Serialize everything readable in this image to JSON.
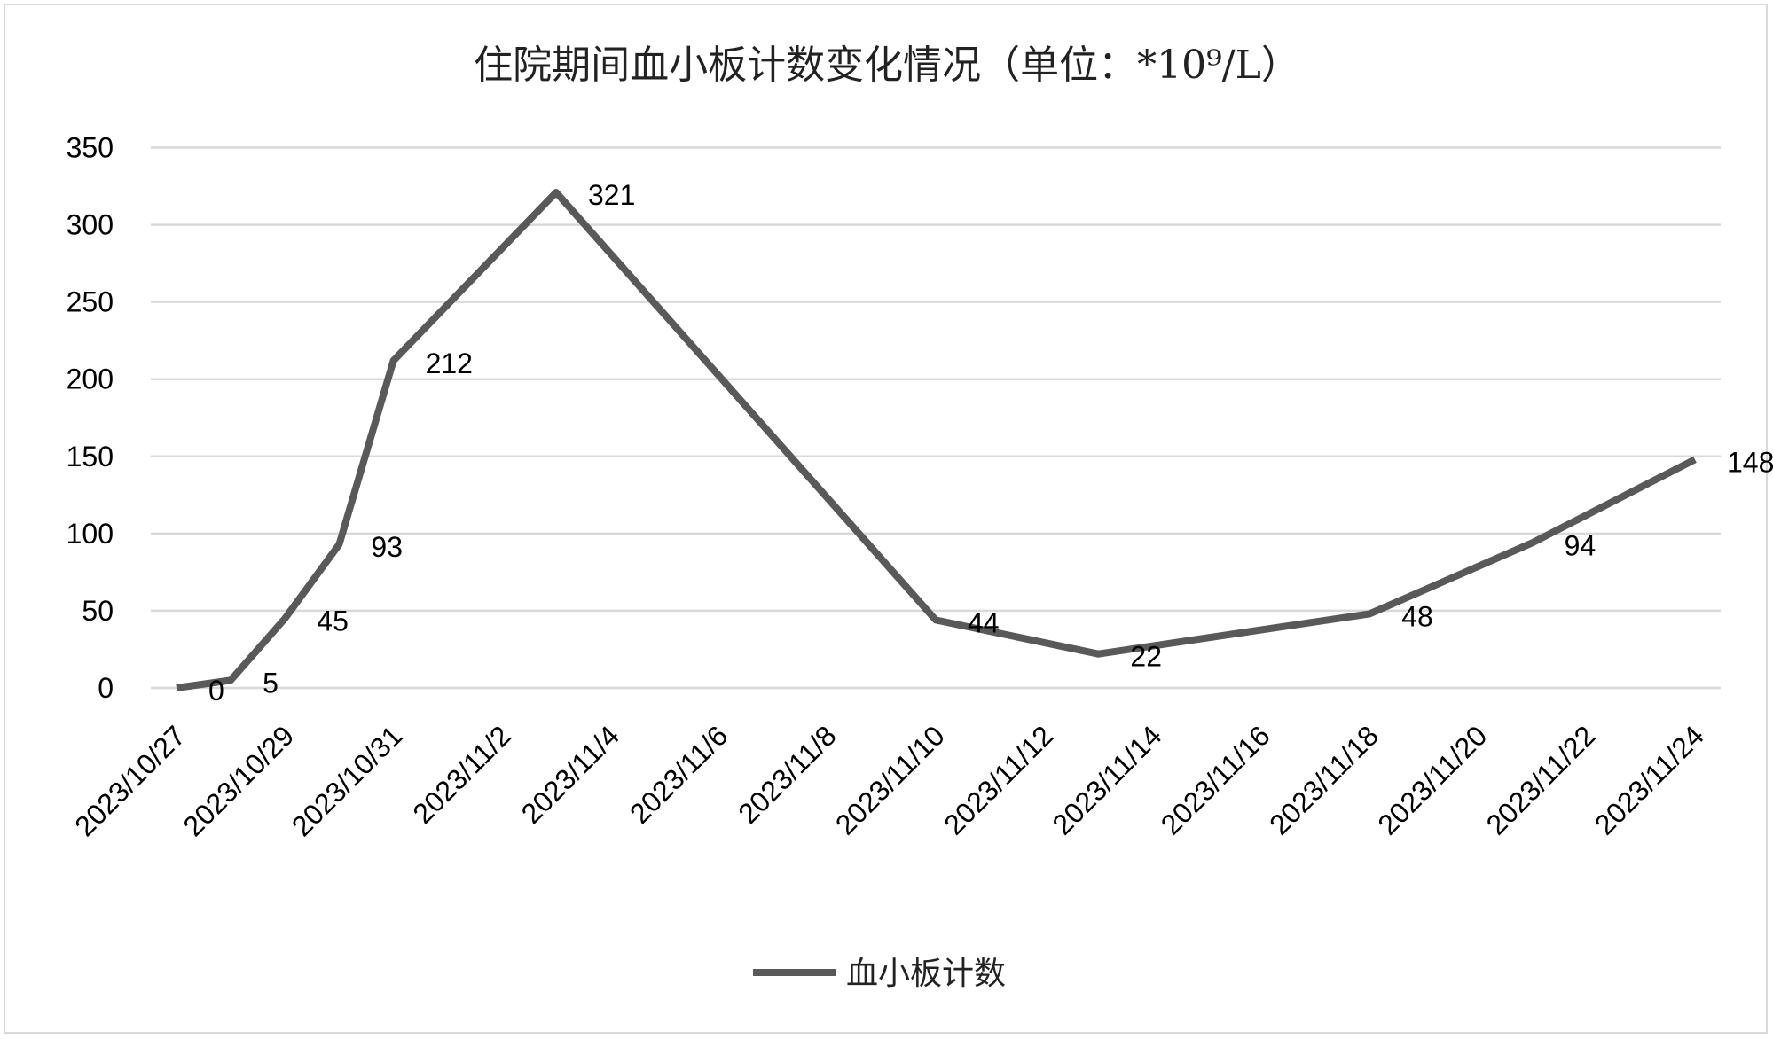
{
  "chart_data": {
    "type": "line",
    "title": "住院期间血小板计数变化情况（单位：*10⁹/L）",
    "xlabel": "",
    "ylabel": "",
    "ylim": [
      0,
      350
    ],
    "yticks": [
      0,
      50,
      100,
      150,
      200,
      250,
      300,
      350
    ],
    "xrange": [
      "2023/10/27",
      "2023/11/24"
    ],
    "xtick_labels": [
      "2023/10/27",
      "2023/10/29",
      "2023/10/31",
      "2023/11/2",
      "2023/11/4",
      "2023/11/6",
      "2023/11/8",
      "2023/11/10",
      "2023/11/12",
      "2023/11/14",
      "2023/11/16",
      "2023/11/18",
      "2023/11/20",
      "2023/11/22",
      "2023/11/24"
    ],
    "grid": true,
    "legend_position": "bottom",
    "series": [
      {
        "name": "血小板计数",
        "color": "#595959",
        "points": [
          {
            "x": "2023/10/27",
            "day": 0,
            "y": 0
          },
          {
            "x": "2023/10/28",
            "day": 1,
            "y": 5
          },
          {
            "x": "2023/10/29",
            "day": 2,
            "y": 45
          },
          {
            "x": "2023/10/30",
            "day": 3,
            "y": 93
          },
          {
            "x": "2023/10/31",
            "day": 4,
            "y": 212
          },
          {
            "x": "2023/11/3",
            "day": 7,
            "y": 321
          },
          {
            "x": "2023/11/10",
            "day": 14,
            "y": 44
          },
          {
            "x": "2023/11/13",
            "day": 17,
            "y": 22
          },
          {
            "x": "2023/11/18",
            "day": 22,
            "y": 48
          },
          {
            "x": "2023/11/21",
            "day": 25,
            "y": 94
          },
          {
            "x": "2023/11/24",
            "day": 28,
            "y": 148
          }
        ]
      }
    ]
  }
}
